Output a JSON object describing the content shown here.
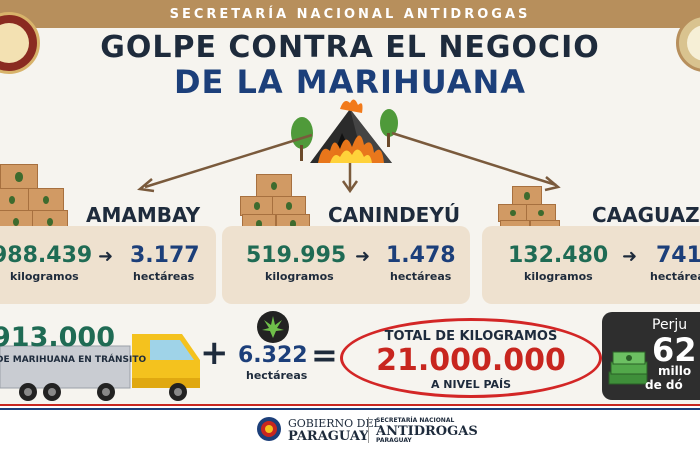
{
  "header": {
    "agency": "SECRETARÍA NACIONAL ANTIDROGAS"
  },
  "title": {
    "line1": "GOLPE CONTRA EL NEGOCIO",
    "line2": "DE LA MARIHUANA"
  },
  "regions": [
    {
      "name": "AMAMBAY",
      "kilograms": "988.439",
      "kg_unit": "kilogramos",
      "hectares": "3.177",
      "ha_unit": "hectáreas"
    },
    {
      "name": "CANINDEYÚ",
      "kilograms": "519.995",
      "kg_unit": "kilogramos",
      "hectares": "1.478",
      "ha_unit": "hectáreas"
    },
    {
      "name": "CAAGUAZ",
      "kilograms": "132.480",
      "kg_unit": "kilogramos",
      "hectares": "741",
      "ha_unit": "hectárea"
    }
  ],
  "bottom": {
    "transit_number": "913.000",
    "transit_label": "DE MARIHUANA EN TRÁNSITO",
    "plus": "+",
    "hectares_total": "6.322",
    "hectares_label": "hectáreas",
    "equals": "=",
    "total_label": "TOTAL DE KILOGRAMOS",
    "total_value": "21.000.000",
    "total_sub": "A NIVEL PAÍS",
    "loss_label": "Perju",
    "loss_value": "62",
    "loss_unit1": "millo",
    "loss_unit2": "de dó"
  },
  "footer": {
    "gob_line1": "GOBIERNO DEL",
    "gob_line2": "PARAGUAY",
    "sena_line1": "SECRETARÍA NACIONAL",
    "sena_line2": "ANTIDROGAS",
    "sena_line3": "PARAGUAY"
  },
  "colors": {
    "brand_brown": "#b78f5c",
    "green": "#1f6b54",
    "blue": "#1c3f7a",
    "red": "#d32626"
  }
}
